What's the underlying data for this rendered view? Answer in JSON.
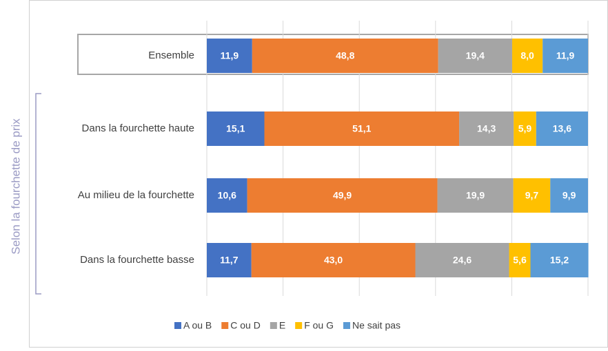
{
  "chart_data": {
    "type": "stacked-bar-horizontal",
    "group_label": "Selon la fourchette de prix",
    "categories": [
      "Ensemble",
      "Dans la fourchette haute",
      "Au milieu de la fourchette",
      "Dans la fourchette basse"
    ],
    "series": [
      {
        "name": "A ou B",
        "color": "#4472c4",
        "values": [
          11.9,
          15.1,
          10.6,
          11.7
        ],
        "value_labels": [
          "11,9",
          "15,1",
          "10,6",
          "11,7"
        ]
      },
      {
        "name": "C ou D",
        "color": "#ed7d31",
        "values": [
          48.8,
          51.1,
          49.9,
          43.0
        ],
        "value_labels": [
          "48,8",
          "51,1",
          "49,9",
          "43,0"
        ]
      },
      {
        "name": "E",
        "color": "#a5a5a5",
        "values": [
          19.4,
          14.3,
          19.9,
          24.6
        ],
        "value_labels": [
          "19,4",
          "14,3",
          "19,9",
          "24,6"
        ]
      },
      {
        "name": "F ou G",
        "color": "#ffc000",
        "values": [
          8.0,
          5.9,
          9.7,
          5.6
        ],
        "value_labels": [
          "8,0",
          "5,9",
          "9,7",
          "5,6"
        ]
      },
      {
        "name": "Ne sait pas",
        "color": "#5b9bd5",
        "values": [
          11.9,
          13.6,
          9.9,
          15.2
        ],
        "value_labels": [
          "11,9",
          "13,6",
          "9,9",
          "15,2"
        ]
      }
    ],
    "xlim": [
      0,
      100
    ],
    "xticks": [
      0,
      20,
      40,
      60,
      80,
      100
    ],
    "grid": true,
    "legend": "bottom"
  }
}
